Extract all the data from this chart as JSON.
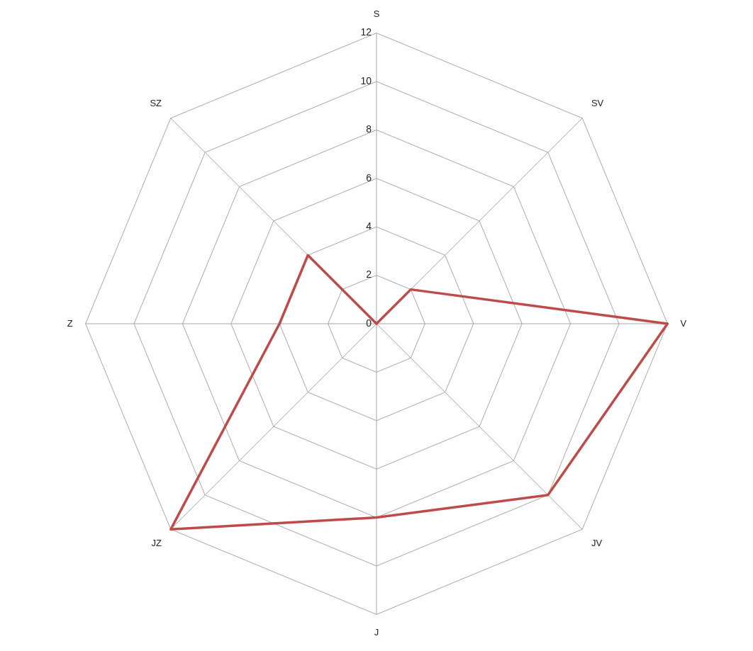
{
  "chart_data": {
    "type": "radar",
    "categories": [
      "S",
      "SV",
      "V",
      "JV",
      "J",
      "JZ",
      "Z",
      "SZ"
    ],
    "series": [
      {
        "color": "#be4b48",
        "values": [
          0,
          2,
          12,
          10,
          8,
          12,
          4,
          4
        ]
      }
    ],
    "ylim": [
      0,
      12
    ],
    "yticks": [
      0,
      2,
      4,
      6,
      8,
      10,
      12
    ],
    "grid": true,
    "legend": false,
    "marker": "none",
    "line_style": "solid"
  }
}
